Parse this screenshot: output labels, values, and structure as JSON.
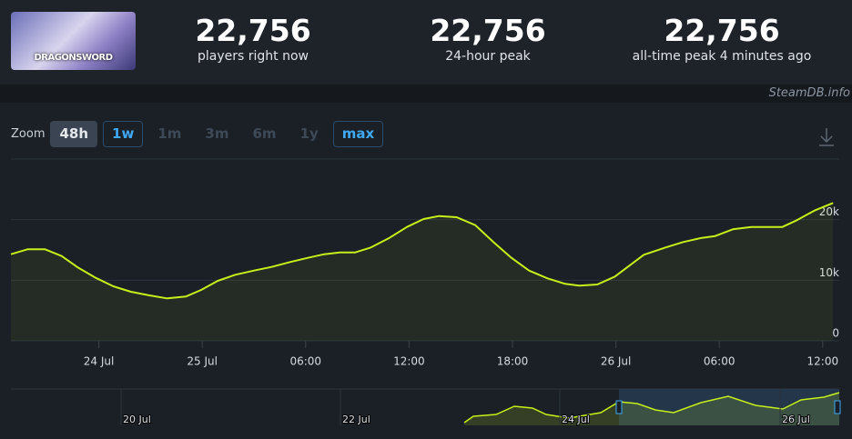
{
  "header": {
    "logo_text": "DRAGONSWORD",
    "stats": [
      {
        "value": "22,756",
        "label": "players right now"
      },
      {
        "value": "22,756",
        "label": "24-hour peak"
      },
      {
        "value": "22,756",
        "label": "all-time peak 4 minutes ago"
      }
    ]
  },
  "watermark": "SteamDB.info",
  "zoom": {
    "label": "Zoom",
    "options": [
      "48h",
      "1w",
      "1m",
      "3m",
      "6m",
      "1y",
      "max"
    ]
  },
  "navigator": {
    "labels": [
      "20 Jul",
      "22 Jul",
      "24 Jul",
      "26 Jul"
    ]
  },
  "chart_data": {
    "type": "line",
    "color": "#c6f01a",
    "grid": true,
    "x": [
      -0.85,
      -0.69,
      -0.52,
      -0.36,
      -0.21,
      -0.03,
      0.14,
      0.31,
      0.49,
      0.66,
      0.84,
      0.99,
      1.15,
      1.32,
      1.5,
      1.67,
      1.85,
      2.02,
      2.18,
      2.33,
      2.48,
      2.63,
      2.81,
      2.98,
      3.14,
      3.29,
      3.46,
      3.64,
      3.81,
      3.99,
      4.16,
      4.34,
      4.51,
      4.65,
      4.82,
      4.99,
      5.13,
      5.27,
      5.48,
      5.65,
      5.83,
      5.96,
      6.13,
      6.31,
      6.61,
      6.75,
      6.92,
      7.1
    ],
    "series": [
      {
        "name": "Players",
        "color": "#c6f01a",
        "values": [
          14300,
          15100,
          15100,
          14000,
          12200,
          10400,
          9000,
          8100,
          7500,
          7000,
          7300,
          8400,
          9900,
          10900,
          11600,
          12200,
          13000,
          13700,
          14300,
          14600,
          14600,
          15400,
          17000,
          18800,
          20100,
          20600,
          20400,
          19100,
          16400,
          13700,
          11600,
          10300,
          9400,
          9100,
          9300,
          10600,
          12400,
          14200,
          15400,
          16300,
          17000,
          17300,
          18400,
          18800,
          18800,
          19900,
          21500,
          22756
        ]
      }
    ],
    "xlim": [
      -0.85,
      7.16
    ],
    "xticks": [
      {
        "value": 0,
        "label": "24 Jul"
      },
      {
        "value": 1,
        "label": "25 Jul"
      },
      {
        "value": 2,
        "label": "06:00"
      },
      {
        "value": 3,
        "label": "12:00"
      },
      {
        "value": 4,
        "label": "18:00"
      },
      {
        "value": 5,
        "label": "26 Jul"
      },
      {
        "value": 6,
        "label": "06:00"
      },
      {
        "value": 7,
        "label": "12:00"
      }
    ],
    "ylim": [
      0,
      30000
    ],
    "yticks": [
      0,
      {
        "value": 10000,
        "label": "10k"
      },
      {
        "value": 20000,
        "label": "20k"
      }
    ]
  }
}
